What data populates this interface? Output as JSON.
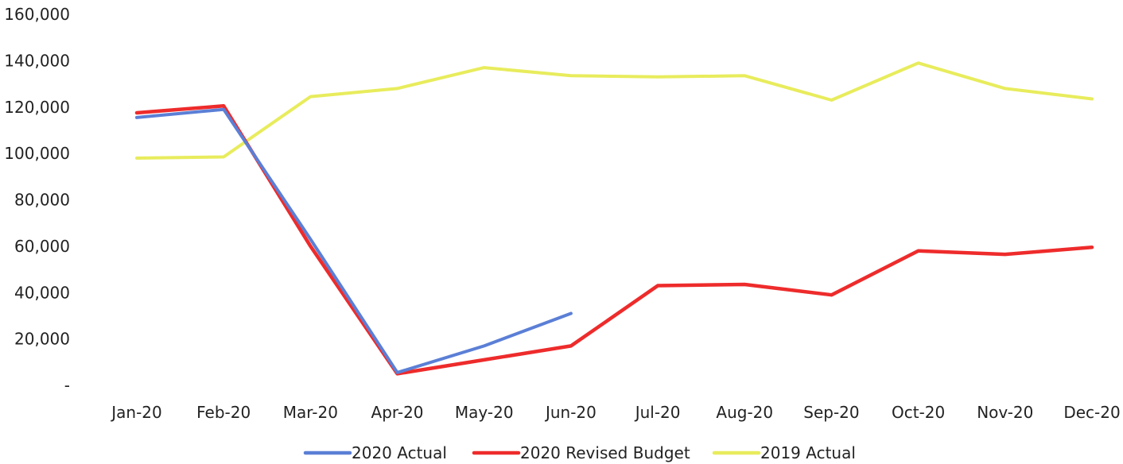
{
  "chart_data": {
    "type": "line",
    "title": "",
    "xlabel": "",
    "ylabel": "",
    "categories": [
      "Jan-20",
      "Feb-20",
      "Mar-20",
      "Apr-20",
      "May-20",
      "Jun-20",
      "Jul-20",
      "Aug-20",
      "Sep-20",
      "Oct-20",
      "Nov-20",
      "Dec-20"
    ],
    "y_ticks": [
      0,
      20000,
      40000,
      60000,
      80000,
      100000,
      120000,
      140000,
      160000
    ],
    "y_tick_labels": [
      "-",
      "20,000",
      "40,000",
      "60,000",
      "80,000",
      "100,000",
      "120,000",
      "140,000",
      "160,000"
    ],
    "ylim": [
      0,
      160000
    ],
    "grid": false,
    "legend_position": "bottom",
    "series": [
      {
        "name": "2020 Actual",
        "color": "#5b7fd6",
        "values": [
          115500,
          119000,
          63000,
          5500,
          17000,
          31000,
          null,
          null,
          null,
          null,
          null,
          null
        ]
      },
      {
        "name": "2020 Revised Budget",
        "color": "#ee2b2b",
        "values": [
          117500,
          120500,
          60000,
          5000,
          11000,
          17000,
          43000,
          43500,
          39000,
          58000,
          56500,
          59500
        ]
      },
      {
        "name": "2019 Actual",
        "color": "#e8ec5c",
        "values": [
          98000,
          98500,
          124500,
          128000,
          137000,
          133500,
          133000,
          133500,
          123000,
          139000,
          128000,
          123500
        ]
      }
    ]
  }
}
